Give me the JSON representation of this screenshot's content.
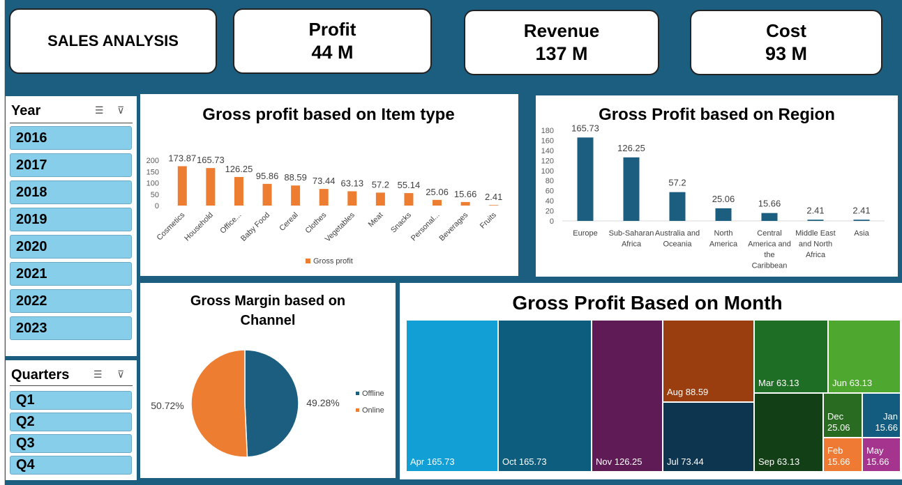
{
  "header": {
    "title": "SALES ANALYSIS",
    "kpis": [
      {
        "label": "Profit",
        "value": "44 M"
      },
      {
        "label": "Revenue",
        "value": "137 M"
      },
      {
        "label": "Cost",
        "value": "93 M"
      }
    ]
  },
  "slicers": {
    "year": {
      "title": "Year",
      "items": [
        "2016",
        "2017",
        "2018",
        "2019",
        "2020",
        "2021",
        "2022",
        "2023"
      ]
    },
    "quarters": {
      "title": "Quarters",
      "items": [
        "Q1",
        "Q2",
        "Q3",
        "Q4"
      ]
    }
  },
  "colors": {
    "orange": "#ed7d31",
    "blue": "#1b5e80"
  },
  "chart_data": [
    {
      "type": "bar",
      "title": "Gross profit based on Item type",
      "categories": [
        "Cosmetics",
        "Household",
        "Office...",
        "Baby Food",
        "Cereal",
        "Clothes",
        "Vegetables",
        "Meat",
        "Snacks",
        "Personal...",
        "Beverages",
        "Fruits"
      ],
      "series": [
        {
          "name": "Gross profit",
          "values": [
            173.87,
            165.73,
            126.25,
            95.86,
            88.59,
            73.44,
            63.13,
            57.2,
            55.14,
            25.06,
            15.66,
            2.41
          ]
        }
      ],
      "yticks": [
        0,
        50,
        100,
        150,
        200
      ],
      "ylim": [
        0,
        200
      ],
      "legend": "bottom"
    },
    {
      "type": "bar",
      "title": "Gross Profit based on Region",
      "categories": [
        "Europe",
        "Sub-Saharan Africa",
        "Australia and Oceania",
        "North America",
        "Central America and the Caribbean",
        "Middle East and North Africa",
        "Asia"
      ],
      "category_lines": [
        [
          "Europe"
        ],
        [
          "Sub-Saharan",
          "Africa"
        ],
        [
          "Australia and",
          "Oceania"
        ],
        [
          "North",
          "America"
        ],
        [
          "Central",
          "America and",
          "the",
          "Caribbean"
        ],
        [
          "Middle East",
          "and North",
          "Africa"
        ],
        [
          "Asia"
        ]
      ],
      "values": [
        165.73,
        126.25,
        57.2,
        25.06,
        15.66,
        2.41,
        2.41
      ],
      "yticks": [
        0,
        20,
        40,
        60,
        80,
        100,
        120,
        140,
        160,
        180
      ],
      "ylim": [
        0,
        180
      ]
    },
    {
      "type": "pie",
      "title": "Gross Margin based on Channel",
      "slices": [
        {
          "name": "Offline",
          "value": 49.28,
          "label": "49.28%",
          "color": "#1b5e80"
        },
        {
          "name": "Online",
          "value": 50.72,
          "label": "50.72%",
          "color": "#ed7d31"
        }
      ],
      "legend": "right"
    },
    {
      "type": "treemap",
      "title": "Gross Profit Based on Month",
      "items": [
        {
          "label": "Apr 165.73",
          "value": 165.73,
          "color": "#119fd6"
        },
        {
          "label": "Oct 165.73",
          "value": 165.73,
          "color": "#0d5d7e"
        },
        {
          "label": "Nov 126.25",
          "value": 126.25,
          "color": "#5e1b55"
        },
        {
          "label": "Aug 88.59",
          "value": 88.59,
          "color": "#9a3e10"
        },
        {
          "label": "Jul 73.44",
          "value": 73.44,
          "color": "#0e3550"
        },
        {
          "label": "Mar 63.13",
          "value": 63.13,
          "color": "#1f6e25"
        },
        {
          "label": "Jun 63.13",
          "value": 63.13,
          "color": "#4ea72e"
        },
        {
          "label": "Sep 63.13",
          "value": 63.13,
          "color": "#133f17"
        },
        {
          "label": "Dec 25.06",
          "value": 25.06,
          "color": "#2a6b22"
        },
        {
          "label": "Jan 15.66",
          "value": 15.66,
          "color": "#145c7f"
        },
        {
          "label": "Feb 15.66",
          "value": 15.66,
          "color": "#ee7a33"
        },
        {
          "label": "May 15.66",
          "value": 15.66,
          "color": "#a4348e"
        }
      ]
    }
  ]
}
